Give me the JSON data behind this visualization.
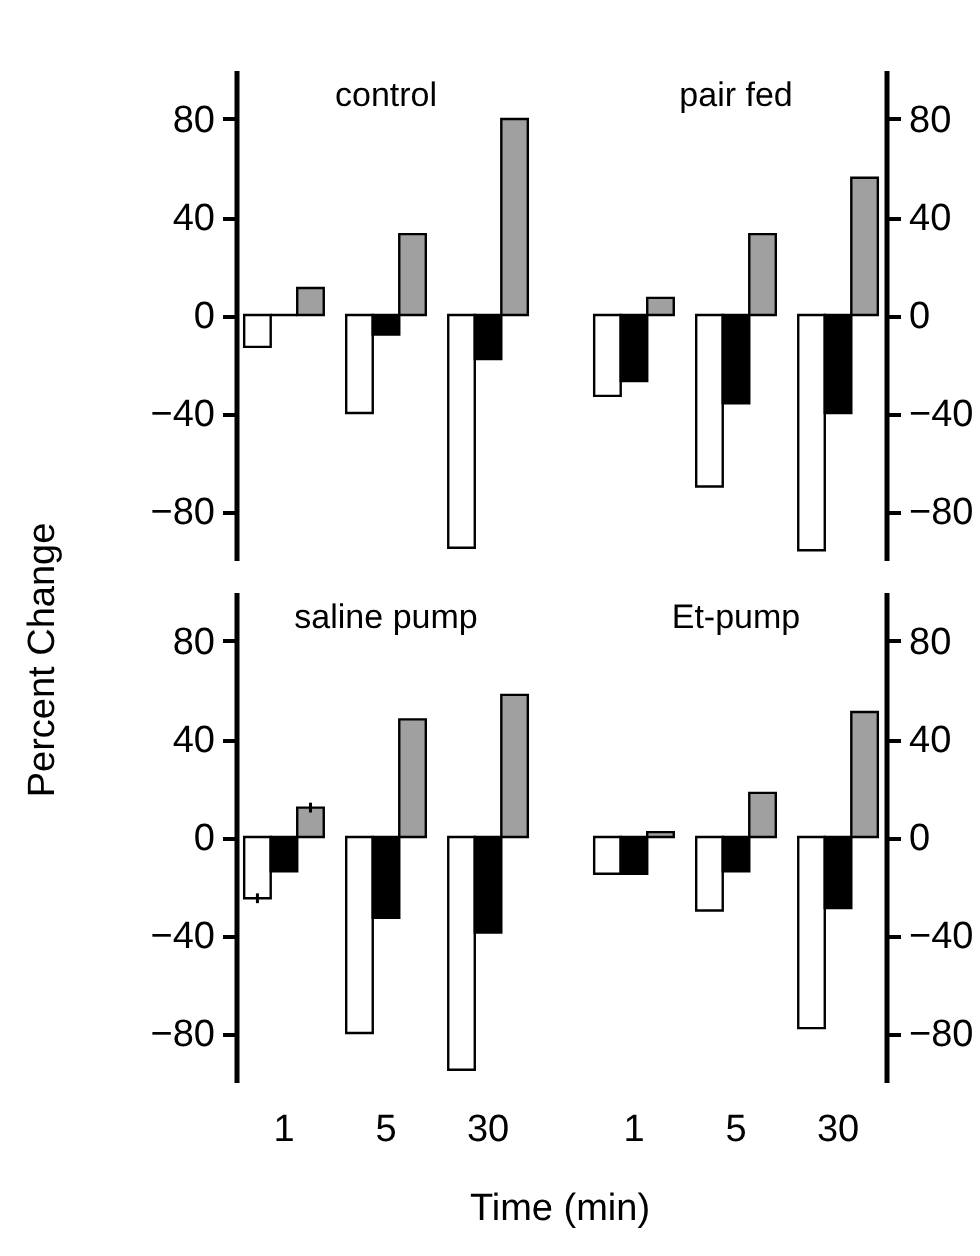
{
  "chart_data": [
    {
      "type": "bar",
      "title": "control",
      "categories": [
        "1",
        "5",
        "30"
      ],
      "ylim": [
        -100,
        100
      ],
      "yticks": [
        -80,
        -40,
        0,
        40,
        80
      ],
      "tick_labels": "y",
      "series": [
        {
          "color": "#ffffff",
          "values": [
            -13,
            -40,
            -95
          ]
        },
        {
          "color": "#000000",
          "values": [
            0,
            -8,
            -18
          ]
        },
        {
          "color": "#a0a0a0",
          "values": [
            11,
            33,
            80
          ]
        }
      ]
    },
    {
      "type": "bar",
      "title": "pair fed",
      "categories": [
        "1",
        "5",
        "30"
      ],
      "ylim": [
        -100,
        100
      ],
      "yticks": [
        -80,
        -40,
        0,
        40,
        80
      ],
      "tick_labels": "y",
      "series": [
        {
          "color": "#ffffff",
          "values": [
            -33,
            -70,
            -96
          ]
        },
        {
          "color": "#000000",
          "values": [
            -27,
            -36,
            -40
          ]
        },
        {
          "color": "#a0a0a0",
          "values": [
            7,
            33,
            56
          ]
        }
      ]
    },
    {
      "type": "bar",
      "title": "saline pump",
      "categories": [
        "1",
        "5",
        "30"
      ],
      "ylim": [
        -100,
        100
      ],
      "yticks": [
        -80,
        -40,
        0,
        40,
        80
      ],
      "xlabel": "Time (min)",
      "ylabel": "Percent Change",
      "series": [
        {
          "color": "#ffffff",
          "values": [
            -25,
            -80,
            -95
          ],
          "errors": [
            2,
            null,
            null
          ]
        },
        {
          "color": "#000000",
          "values": [
            -14,
            -33,
            -39
          ]
        },
        {
          "color": "#a0a0a0",
          "values": [
            12,
            48,
            58
          ],
          "errors": [
            2,
            null,
            null
          ]
        }
      ]
    },
    {
      "type": "bar",
      "title": "Et-pump",
      "categories": [
        "1",
        "5",
        "30"
      ],
      "ylim": [
        -100,
        100
      ],
      "yticks": [
        -80,
        -40,
        0,
        40,
        80
      ],
      "series": [
        {
          "color": "#ffffff",
          "values": [
            -15,
            -30,
            -78
          ]
        },
        {
          "color": "#000000",
          "values": [
            -15,
            -14,
            -29
          ]
        },
        {
          "color": "#a0a0a0",
          "values": [
            2,
            18,
            51
          ]
        }
      ]
    }
  ]
}
